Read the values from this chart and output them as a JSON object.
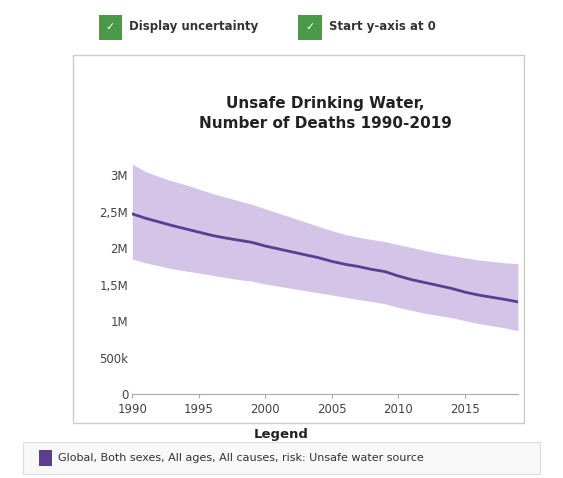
{
  "title": "Unsafe Drinking Water,\nNumber of Deaths 1990-2019",
  "line_color": "#5c3d8f",
  "band_color": "#d4c4e8",
  "years": [
    1990,
    1991,
    1992,
    1993,
    1994,
    1995,
    1996,
    1997,
    1998,
    1999,
    2000,
    2001,
    2002,
    2003,
    2004,
    2005,
    2006,
    2007,
    2008,
    2009,
    2010,
    2011,
    2012,
    2013,
    2014,
    2015,
    2016,
    2017,
    2018,
    2019
  ],
  "central": [
    2470000,
    2410000,
    2360000,
    2310000,
    2265000,
    2220000,
    2175000,
    2140000,
    2110000,
    2080000,
    2030000,
    1990000,
    1950000,
    1910000,
    1870000,
    1820000,
    1780000,
    1750000,
    1710000,
    1680000,
    1620000,
    1570000,
    1530000,
    1490000,
    1450000,
    1400000,
    1360000,
    1330000,
    1300000,
    1265000
  ],
  "upper": [
    3150000,
    3050000,
    2980000,
    2920000,
    2870000,
    2810000,
    2750000,
    2700000,
    2650000,
    2600000,
    2540000,
    2480000,
    2420000,
    2360000,
    2300000,
    2240000,
    2190000,
    2150000,
    2120000,
    2090000,
    2050000,
    2010000,
    1970000,
    1930000,
    1900000,
    1870000,
    1840000,
    1820000,
    1800000,
    1790000
  ],
  "lower": [
    1850000,
    1800000,
    1760000,
    1720000,
    1690000,
    1660000,
    1630000,
    1600000,
    1570000,
    1550000,
    1510000,
    1480000,
    1450000,
    1420000,
    1390000,
    1360000,
    1330000,
    1300000,
    1270000,
    1240000,
    1190000,
    1150000,
    1110000,
    1080000,
    1050000,
    1010000,
    970000,
    940000,
    910000,
    870000
  ],
  "ylim": [
    0,
    3500000
  ],
  "yticks": [
    0,
    500000,
    1000000,
    1500000,
    2000000,
    2500000,
    3000000
  ],
  "ytick_labels": [
    "0",
    "500k",
    "1M",
    "1,5M",
    "2M",
    "2,5M",
    "3M"
  ],
  "xticks": [
    1990,
    1995,
    2000,
    2005,
    2010,
    2015
  ],
  "legend_label": "Global, Both sexes, All ages, All causes, risk: Unsafe water source",
  "legend_title": "Legend",
  "checkbox1_text": "Display uncertainty",
  "checkbox2_text": "Start y-axis at 0",
  "background_color": "#ffffff",
  "plot_bg_color": "#ffffff",
  "border_color": "#cccccc",
  "text_color": "#444444",
  "checkbox_green": "#4a9a4a"
}
